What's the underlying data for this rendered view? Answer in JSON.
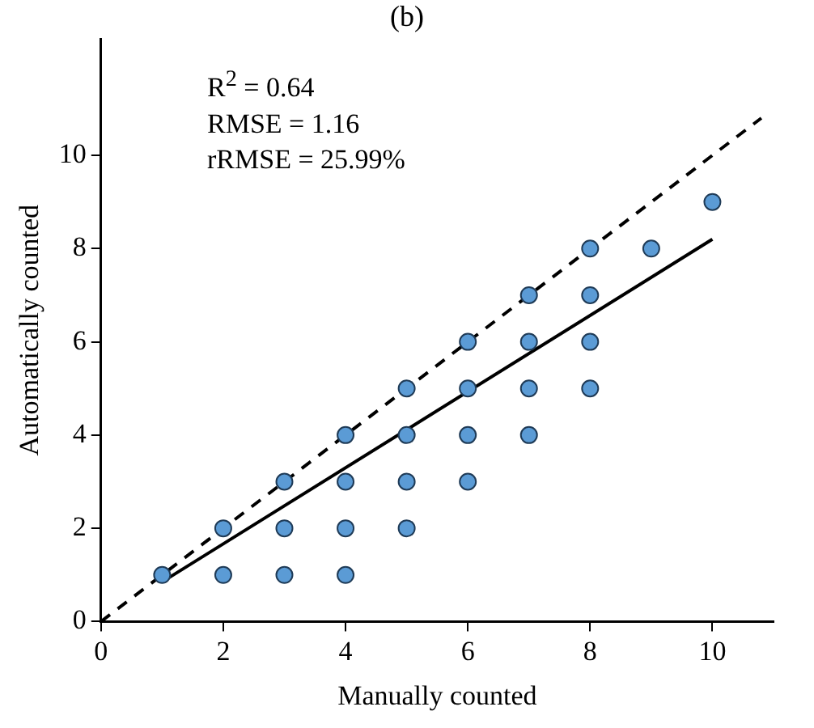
{
  "chart_data": {
    "type": "scatter",
    "title": "(b)",
    "xlabel": "Manually counted",
    "ylabel": "Automatically counted",
    "annotations": [
      "R$^{2}$ = 0.64",
      "RMSE = 1.16",
      "rRMSE = 25.99%"
    ],
    "xlim": [
      0,
      11
    ],
    "ylim": [
      0,
      12.5
    ],
    "xticks": [
      0,
      2,
      4,
      6,
      8,
      10
    ],
    "yticks": [
      0,
      2,
      4,
      6,
      8,
      10
    ],
    "grid": false,
    "legend": false,
    "series": [
      {
        "type": "scatter",
        "color": "#5b9bd5",
        "marker": "circle",
        "x": [
          1,
          2,
          2,
          3,
          3,
          3,
          4,
          4,
          4,
          4,
          5,
          5,
          5,
          5,
          6,
          6,
          6,
          6,
          7,
          7,
          7,
          7,
          8,
          8,
          8,
          8,
          9,
          10
        ],
        "values": [
          1,
          1,
          2,
          1,
          2,
          3,
          1,
          2,
          3,
          4,
          2,
          3,
          4,
          5,
          3,
          4,
          5,
          6,
          4,
          5,
          6,
          7,
          5,
          6,
          7,
          8,
          8,
          9
        ]
      },
      {
        "type": "line",
        "color": "#000000",
        "line_style": "solid",
        "marker": "none",
        "x": [
          1,
          10
        ],
        "values": [
          0.85,
          8.2
        ]
      },
      {
        "type": "line",
        "color": "#000000",
        "line_style": "dashed",
        "marker": "none",
        "x": [
          0,
          10.8
        ],
        "values": [
          0,
          10.8
        ]
      }
    ]
  }
}
